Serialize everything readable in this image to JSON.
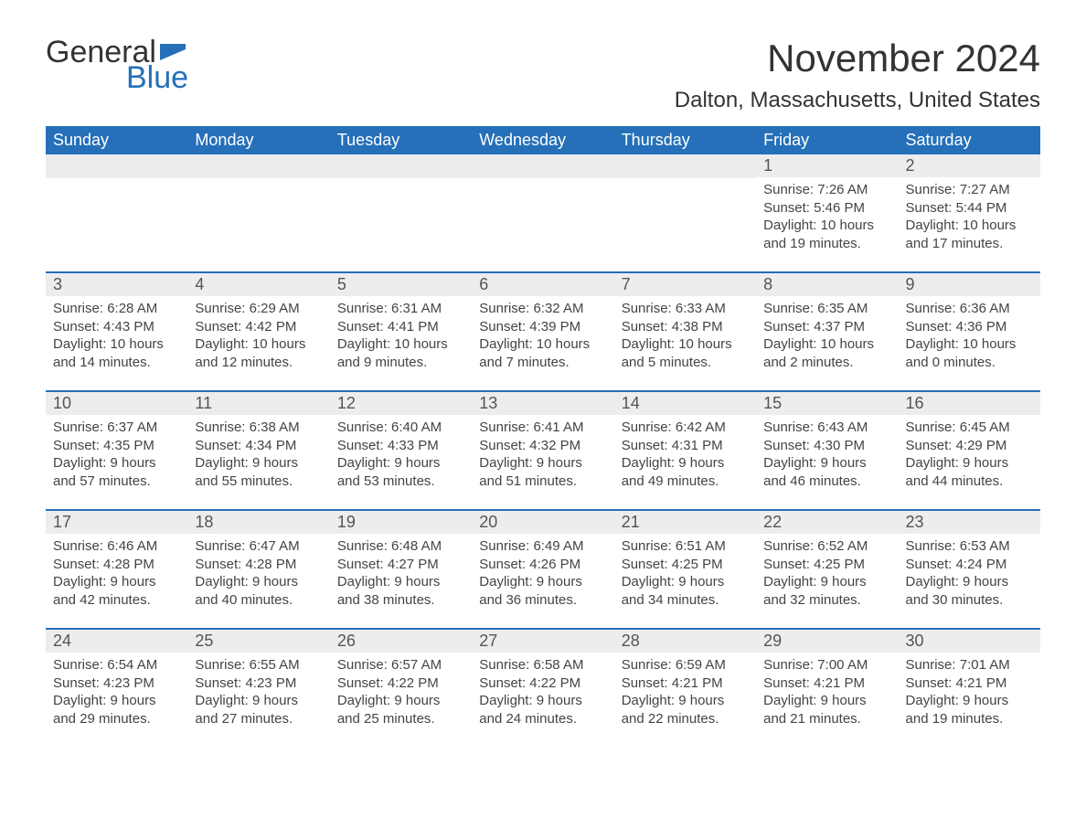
{
  "logo": {
    "word1": "General",
    "word2": "Blue",
    "flag_color": "#2570b8"
  },
  "title": "November 2024",
  "location": "Dalton, Massachusetts, United States",
  "colors": {
    "header_bg": "#2570b8",
    "header_fg": "#ffffff",
    "daynum_bg": "#ededed",
    "text": "#333333"
  },
  "day_headers": [
    "Sunday",
    "Monday",
    "Tuesday",
    "Wednesday",
    "Thursday",
    "Friday",
    "Saturday"
  ],
  "weeks": [
    [
      null,
      null,
      null,
      null,
      null,
      {
        "n": "1",
        "sunrise": "Sunrise: 7:26 AM",
        "sunset": "Sunset: 5:46 PM",
        "day1": "Daylight: 10 hours",
        "day2": "and 19 minutes."
      },
      {
        "n": "2",
        "sunrise": "Sunrise: 7:27 AM",
        "sunset": "Sunset: 5:44 PM",
        "day1": "Daylight: 10 hours",
        "day2": "and 17 minutes."
      }
    ],
    [
      {
        "n": "3",
        "sunrise": "Sunrise: 6:28 AM",
        "sunset": "Sunset: 4:43 PM",
        "day1": "Daylight: 10 hours",
        "day2": "and 14 minutes."
      },
      {
        "n": "4",
        "sunrise": "Sunrise: 6:29 AM",
        "sunset": "Sunset: 4:42 PM",
        "day1": "Daylight: 10 hours",
        "day2": "and 12 minutes."
      },
      {
        "n": "5",
        "sunrise": "Sunrise: 6:31 AM",
        "sunset": "Sunset: 4:41 PM",
        "day1": "Daylight: 10 hours",
        "day2": "and 9 minutes."
      },
      {
        "n": "6",
        "sunrise": "Sunrise: 6:32 AM",
        "sunset": "Sunset: 4:39 PM",
        "day1": "Daylight: 10 hours",
        "day2": "and 7 minutes."
      },
      {
        "n": "7",
        "sunrise": "Sunrise: 6:33 AM",
        "sunset": "Sunset: 4:38 PM",
        "day1": "Daylight: 10 hours",
        "day2": "and 5 minutes."
      },
      {
        "n": "8",
        "sunrise": "Sunrise: 6:35 AM",
        "sunset": "Sunset: 4:37 PM",
        "day1": "Daylight: 10 hours",
        "day2": "and 2 minutes."
      },
      {
        "n": "9",
        "sunrise": "Sunrise: 6:36 AM",
        "sunset": "Sunset: 4:36 PM",
        "day1": "Daylight: 10 hours",
        "day2": "and 0 minutes."
      }
    ],
    [
      {
        "n": "10",
        "sunrise": "Sunrise: 6:37 AM",
        "sunset": "Sunset: 4:35 PM",
        "day1": "Daylight: 9 hours",
        "day2": "and 57 minutes."
      },
      {
        "n": "11",
        "sunrise": "Sunrise: 6:38 AM",
        "sunset": "Sunset: 4:34 PM",
        "day1": "Daylight: 9 hours",
        "day2": "and 55 minutes."
      },
      {
        "n": "12",
        "sunrise": "Sunrise: 6:40 AM",
        "sunset": "Sunset: 4:33 PM",
        "day1": "Daylight: 9 hours",
        "day2": "and 53 minutes."
      },
      {
        "n": "13",
        "sunrise": "Sunrise: 6:41 AM",
        "sunset": "Sunset: 4:32 PM",
        "day1": "Daylight: 9 hours",
        "day2": "and 51 minutes."
      },
      {
        "n": "14",
        "sunrise": "Sunrise: 6:42 AM",
        "sunset": "Sunset: 4:31 PM",
        "day1": "Daylight: 9 hours",
        "day2": "and 49 minutes."
      },
      {
        "n": "15",
        "sunrise": "Sunrise: 6:43 AM",
        "sunset": "Sunset: 4:30 PM",
        "day1": "Daylight: 9 hours",
        "day2": "and 46 minutes."
      },
      {
        "n": "16",
        "sunrise": "Sunrise: 6:45 AM",
        "sunset": "Sunset: 4:29 PM",
        "day1": "Daylight: 9 hours",
        "day2": "and 44 minutes."
      }
    ],
    [
      {
        "n": "17",
        "sunrise": "Sunrise: 6:46 AM",
        "sunset": "Sunset: 4:28 PM",
        "day1": "Daylight: 9 hours",
        "day2": "and 42 minutes."
      },
      {
        "n": "18",
        "sunrise": "Sunrise: 6:47 AM",
        "sunset": "Sunset: 4:28 PM",
        "day1": "Daylight: 9 hours",
        "day2": "and 40 minutes."
      },
      {
        "n": "19",
        "sunrise": "Sunrise: 6:48 AM",
        "sunset": "Sunset: 4:27 PM",
        "day1": "Daylight: 9 hours",
        "day2": "and 38 minutes."
      },
      {
        "n": "20",
        "sunrise": "Sunrise: 6:49 AM",
        "sunset": "Sunset: 4:26 PM",
        "day1": "Daylight: 9 hours",
        "day2": "and 36 minutes."
      },
      {
        "n": "21",
        "sunrise": "Sunrise: 6:51 AM",
        "sunset": "Sunset: 4:25 PM",
        "day1": "Daylight: 9 hours",
        "day2": "and 34 minutes."
      },
      {
        "n": "22",
        "sunrise": "Sunrise: 6:52 AM",
        "sunset": "Sunset: 4:25 PM",
        "day1": "Daylight: 9 hours",
        "day2": "and 32 minutes."
      },
      {
        "n": "23",
        "sunrise": "Sunrise: 6:53 AM",
        "sunset": "Sunset: 4:24 PM",
        "day1": "Daylight: 9 hours",
        "day2": "and 30 minutes."
      }
    ],
    [
      {
        "n": "24",
        "sunrise": "Sunrise: 6:54 AM",
        "sunset": "Sunset: 4:23 PM",
        "day1": "Daylight: 9 hours",
        "day2": "and 29 minutes."
      },
      {
        "n": "25",
        "sunrise": "Sunrise: 6:55 AM",
        "sunset": "Sunset: 4:23 PM",
        "day1": "Daylight: 9 hours",
        "day2": "and 27 minutes."
      },
      {
        "n": "26",
        "sunrise": "Sunrise: 6:57 AM",
        "sunset": "Sunset: 4:22 PM",
        "day1": "Daylight: 9 hours",
        "day2": "and 25 minutes."
      },
      {
        "n": "27",
        "sunrise": "Sunrise: 6:58 AM",
        "sunset": "Sunset: 4:22 PM",
        "day1": "Daylight: 9 hours",
        "day2": "and 24 minutes."
      },
      {
        "n": "28",
        "sunrise": "Sunrise: 6:59 AM",
        "sunset": "Sunset: 4:21 PM",
        "day1": "Daylight: 9 hours",
        "day2": "and 22 minutes."
      },
      {
        "n": "29",
        "sunrise": "Sunrise: 7:00 AM",
        "sunset": "Sunset: 4:21 PM",
        "day1": "Daylight: 9 hours",
        "day2": "and 21 minutes."
      },
      {
        "n": "30",
        "sunrise": "Sunrise: 7:01 AM",
        "sunset": "Sunset: 4:21 PM",
        "day1": "Daylight: 9 hours",
        "day2": "and 19 minutes."
      }
    ]
  ]
}
